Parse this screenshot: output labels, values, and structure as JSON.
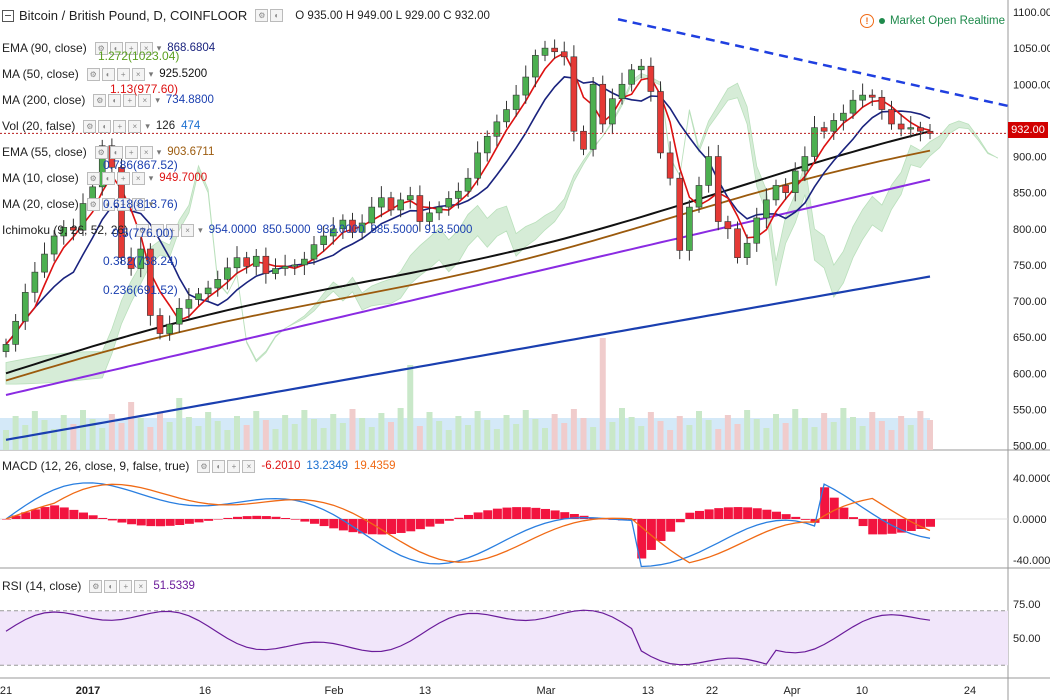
{
  "header": {
    "symbol": "Bitcoin / British Pound, D, COINFLOOR",
    "ohlc": "O 935.00 H 949.00 L 929.00 C 932.00",
    "market_status": "Market Open Realtime",
    "last_price": "932.00"
  },
  "indicators": [
    {
      "label": "EMA (90, close)",
      "value": "868.6804",
      "color": "#1a237e"
    },
    {
      "label": "MA (50, close)",
      "value": "925.5200",
      "color": "#111111"
    },
    {
      "label": "MA (200, close)",
      "value": "734.8800",
      "color": "#1a3fb0"
    },
    {
      "label": "Vol (20, false)",
      "value": "126",
      "value2": "474",
      "color": "#222222",
      "color2": "#1a6fd0"
    },
    {
      "label": "EMA (55, close)",
      "value": "903.6711",
      "color": "#9b5a0d"
    },
    {
      "label": "MA (10, close)",
      "value": "949.7000",
      "color": "#d11"
    },
    {
      "label": "MA (20, close)",
      "value": "",
      "color": "#1a237e"
    },
    {
      "label": "Ichimoku (9, 26, 52, 26)",
      "value": "954.0000",
      "value2": "850.5000",
      "value3": "932.0000",
      "value4": "885.5000",
      "value5": "913.5000",
      "color": "#1a3fb0"
    }
  ],
  "fib_labels": [
    {
      "text": "1.272(1023.04)",
      "color": "#5a9f1f"
    },
    {
      "text": "1.13(977.60)",
      "color": "#d11"
    },
    {
      "text": "0.786(867.52)",
      "color": "#1a3fb0"
    },
    {
      "text": "0.618(813.76)",
      "color": "#1a3fb0"
    },
    {
      "text": "0.5(776.00)",
      "color": "#1a3fb0"
    },
    {
      "text": "0.382(738.24)",
      "color": "#1a3fb0"
    },
    {
      "text": "0.236(691.52)",
      "color": "#1a3fb0"
    }
  ],
  "macd_header": {
    "label": "MACD (12, 26, close, 9, false, true)",
    "v1": "-6.2010",
    "v2": "13.2349",
    "v3": "19.4359"
  },
  "rsi_header": {
    "label": "RSI (14, close)",
    "v1": "51.5339"
  },
  "chart_data": {
    "type": "candlestick",
    "price_axis": {
      "min": 480,
      "max": 1100,
      "ticks": [
        1100,
        1050,
        1000,
        950,
        900,
        850,
        800,
        750,
        700,
        650,
        600,
        550,
        500
      ]
    },
    "x_ticks": [
      "21",
      "2017",
      "16",
      "Feb",
      "13",
      "Mar",
      "13",
      "22",
      "Apr",
      "10",
      "24"
    ],
    "close": [
      640,
      672,
      712,
      740,
      765,
      790,
      802,
      798,
      835,
      858,
      915,
      885,
      760,
      745,
      772,
      680,
      655,
      668,
      690,
      702,
      710,
      718,
      730,
      746,
      760,
      748,
      762,
      738,
      745,
      748,
      750,
      758,
      778,
      790,
      800,
      812,
      795,
      808,
      830,
      843,
      826,
      840,
      846,
      810,
      822,
      830,
      842,
      852,
      870,
      905,
      928,
      948,
      965,
      985,
      1010,
      1040,
      1050,
      1045,
      1038,
      935,
      910,
      1000,
      945,
      980,
      1000,
      1020,
      1025,
      990,
      905,
      870,
      770,
      830,
      860,
      900,
      810,
      800,
      760,
      780,
      815,
      840,
      860,
      850,
      880,
      900,
      940,
      935,
      950,
      960,
      978,
      985,
      982,
      965,
      945,
      938,
      940,
      935,
      932
    ],
    "resistance_line": {
      "from": 1090,
      "to": 935
    },
    "horizontal_line": 932,
    "macd_axis": {
      "ticks": [
        40,
        0,
        -40
      ]
    },
    "rsi_axis": {
      "ticks": [
        75,
        50
      ]
    },
    "colors": {
      "up": "#4caf50",
      "down": "#e53935",
      "ma10": "#d11",
      "ma20": "#1a237e",
      "ma50": "#111111",
      "ema55": "#9b5a0d",
      "ema90": "#8a2be2",
      "ma200": "#1a3fb0",
      "trend": "#1f3fe0"
    }
  }
}
